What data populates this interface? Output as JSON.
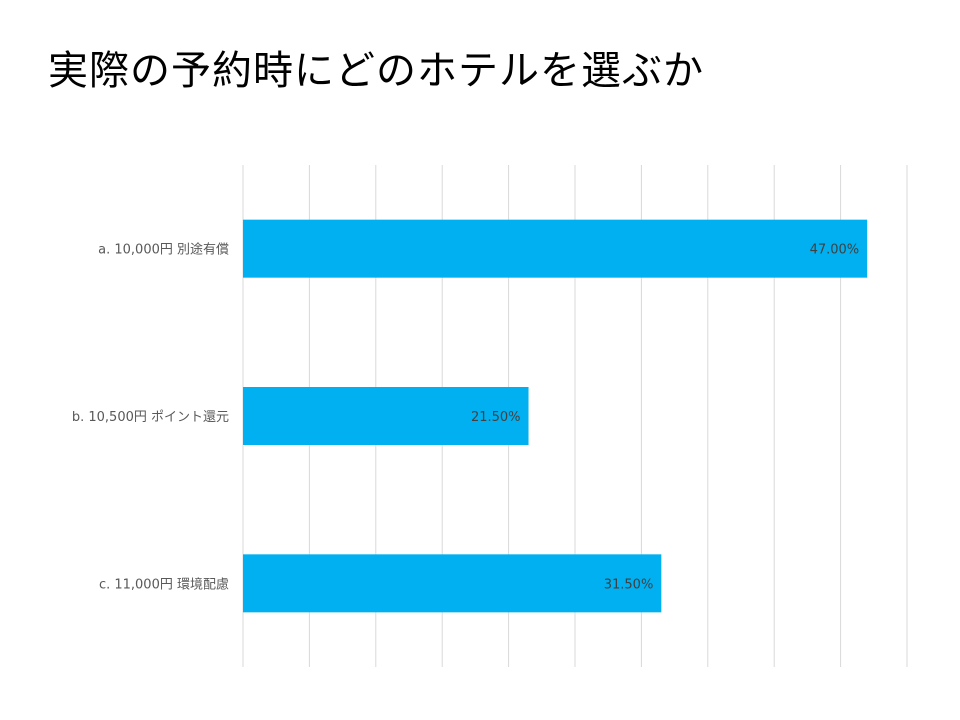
{
  "slide": {
    "title": "実際の予約時にどのホテルを選ぶか"
  },
  "chart_data": {
    "type": "bar",
    "orientation": "horizontal",
    "title": "",
    "categories": [
      "a. 10,000円 別途有償",
      "b. 10,500円 ポイント還元",
      "c. 11,000円 環境配慮"
    ],
    "values": [
      47.0,
      21.5,
      31.5
    ],
    "data_labels": [
      "47.00%",
      "21.50%",
      "31.50%"
    ],
    "xlim": [
      0,
      50
    ],
    "x_grid_step": 5,
    "grid": true,
    "legend": "none",
    "bar_color": "#00B0F0",
    "grid_color": "#D9D9D9"
  }
}
